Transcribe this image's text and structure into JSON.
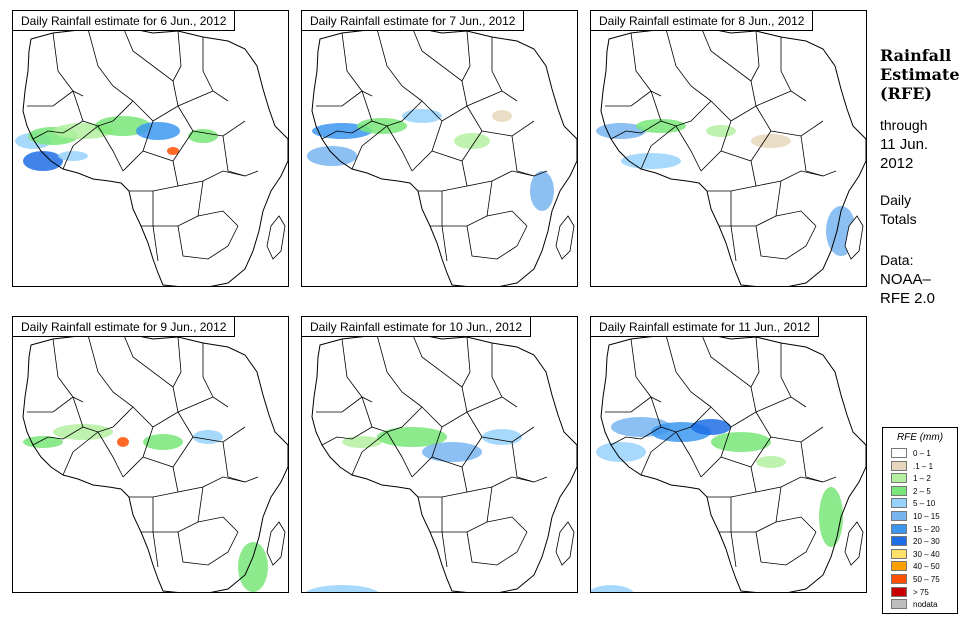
{
  "panels": [
    {
      "title": "Daily Rainfall estimate for  6 Jun., 2012"
    },
    {
      "title": "Daily Rainfall estimate for  7 Jun., 2012"
    },
    {
      "title": "Daily Rainfall estimate for  8 Jun., 2012"
    },
    {
      "title": "Daily Rainfall estimate for  9 Jun., 2012"
    },
    {
      "title": "Daily Rainfall estimate for  10 Jun., 2012"
    },
    {
      "title": "Daily Rainfall estimate for  11 Jun., 2012"
    }
  ],
  "side": {
    "title_line1": "Rainfall",
    "title_line2": "Estimate",
    "title_line3": "(RFE)",
    "through": "through",
    "date_line1": "11 Jun.",
    "date_line2": "2012",
    "totals_line1": "Daily",
    "totals_line2": "Totals",
    "data_line1": "Data:",
    "data_line2": "NOAA–",
    "data_line3": "RFE 2.0"
  },
  "legend": {
    "title": "RFE (mm)",
    "items": [
      {
        "label": "0 – 1",
        "color": "#ffffff"
      },
      {
        "label": ".1 – 1",
        "color": "#e6d7bc"
      },
      {
        "label": "1 – 2",
        "color": "#b4f0a0"
      },
      {
        "label": "2 – 5",
        "color": "#78e678"
      },
      {
        "label": "5 – 10",
        "color": "#96d2fa"
      },
      {
        "label": "10 – 15",
        "color": "#78b4f0"
      },
      {
        "label": "15 – 20",
        "color": "#3c96f0"
      },
      {
        "label": "20 – 30",
        "color": "#1e6ee6"
      },
      {
        "label": "30 – 40",
        "color": "#ffe169"
      },
      {
        "label": "40 – 50",
        "color": "#ffa000"
      },
      {
        "label": "50 – 75",
        "color": "#ff5000"
      },
      {
        "label": "> 75",
        "color": "#c80000"
      },
      {
        "label": "nodata",
        "color": "#bebebe"
      }
    ]
  }
}
